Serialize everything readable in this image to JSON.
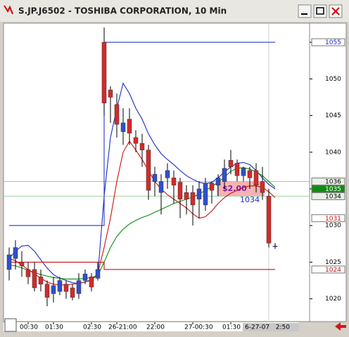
{
  "chart_data": {
    "type": "candlestick",
    "title": "S.JP.J6502 - TOSHIBA CORPORATION, 10 Min",
    "categories": [
      null,
      null,
      null,
      "00:30",
      null,
      null,
      null,
      "01:30",
      null,
      null,
      null,
      null,
      null,
      "02:30",
      null,
      null,
      null,
      "26-21:00",
      null,
      null,
      null,
      null,
      null,
      "22:00",
      null,
      null,
      null,
      null,
      null,
      "27-00:30",
      null,
      null,
      null,
      null,
      null,
      "01:30",
      null,
      null,
      null,
      null,
      null,
      null,
      null
    ],
    "open": [
      1024,
      1025.5,
      1025,
      1024,
      1024,
      1023,
      1022,
      1020.7,
      1021,
      1022,
      1021.5,
      1020.7,
      1022.5,
      1023,
      1022.8,
      1055,
      1048.5,
      1046.5,
      1042.8,
      1044.5,
      1042,
      1041.2,
      1040.3,
      1036,
      1034.5,
      1036.5,
      1036.5,
      1035.9,
      1034.5,
      1034.5,
      1033.6,
      1032.8,
      1035.8,
      1035.5,
      1036,
      1038.9,
      1038.5,
      1036.8,
      1037.5,
      1037.5,
      1036,
      1034,
      1027.2
    ],
    "high": [
      1027,
      1028,
      1026.5,
      1025,
      1025,
      1024,
      1022.5,
      1023,
      1023,
      1022.5,
      1022,
      1023.5,
      1024,
      1023.5,
      1025,
      1057,
      1049,
      1048,
      1046,
      1046,
      1043,
      1042.5,
      1041,
      1038,
      1037,
      1038.5,
      1037.5,
      1036.5,
      1035.5,
      1035.5,
      1036,
      1036.5,
      1036,
      1037,
      1039,
      1040.3,
      1039,
      1038,
      1038,
      1038.5,
      1038,
      1035,
      1027.6
    ],
    "low": [
      1022.5,
      1024,
      1023,
      1022,
      1021,
      1021,
      1019,
      1019.5,
      1020.5,
      1020,
      1019.8,
      1020,
      1022,
      1021,
      1022.5,
      1045,
      1044,
      1042,
      1041,
      1041,
      1040,
      1038,
      1033.5,
      1034,
      1031.5,
      1035,
      1033,
      1031,
      1031.5,
      1030,
      1031,
      1032,
      1033,
      1034,
      1035,
      1037,
      1036,
      1036,
      1035,
      1034.5,
      1033.5,
      1027,
      1026.8
    ],
    "close": [
      1026,
      1027,
      1024.5,
      1023,
      1021.5,
      1022,
      1020.2,
      1021.8,
      1022.5,
      1021,
      1020.2,
      1022.5,
      1023.4,
      1021.6,
      1024,
      1046.7,
      1047.5,
      1043.8,
      1044,
      1042.6,
      1041.2,
      1040.3,
      1034.8,
      1037,
      1036,
      1037.5,
      1035.5,
      1033.6,
      1033.6,
      1032.8,
      1035,
      1035.8,
      1034.8,
      1036.5,
      1037.8,
      1038,
      1036.8,
      1037.8,
      1036.5,
      1035.5,
      1034.5,
      1027.6,
      1027.2
    ],
    "up_color": "#2f4fd0",
    "down_color": "#d42a2a",
    "series": [
      {
        "color": "#1c2cc0",
        "step": false,
        "values": [
          1025.5,
          1026.5,
          1027.2,
          1027.3,
          1026.5,
          1025.3,
          1024.2,
          1023.3,
          1022.8,
          1022.5,
          1022.2,
          1022.1,
          1022.3,
          1022.6,
          1023.3,
          1034,
          1042,
          1046,
          1049.4,
          1048,
          1046,
          1044.5,
          1042.5,
          1041,
          1039.8,
          1039,
          1038.3,
          1037.5,
          1036.8,
          1036.3,
          1035.9,
          1035.7,
          1035.9,
          1036.5,
          1037.3,
          1038,
          1038.5,
          1038.6,
          1038.3,
          1037.5,
          1036.5,
          1035.6,
          1035
        ]
      },
      {
        "color": "#cc1111",
        "step": false,
        "values": [
          1025.5,
          1025.2,
          1024.6,
          1024,
          1023.4,
          1022.8,
          1022.3,
          1022,
          1021.9,
          1021.9,
          1022,
          1022.1,
          1022.3,
          1022.5,
          1023.5,
          1027,
          1031,
          1036,
          1040,
          1041.5,
          1040.3,
          1039,
          1037.5,
          1036,
          1035,
          1034.2,
          1033.6,
          1033,
          1032.4,
          1031.6,
          1031,
          1031.2,
          1032,
          1033,
          1033.8,
          1034.4,
          1034.8,
          1035.2,
          1035.4,
          1035.4,
          1035.2,
          1034.6,
          1033.8
        ]
      },
      {
        "color": "#118a11",
        "step": false,
        "values": [
          1024.6,
          1024.5,
          1024.2,
          1023.9,
          1023.6,
          1023.3,
          1023.1,
          1022.9,
          1022.8,
          1022.7,
          1022.7,
          1022.7,
          1022.8,
          1022.9,
          1023.2,
          1025,
          1027,
          1028.5,
          1029.5,
          1030.2,
          1030.7,
          1031.1,
          1031.4,
          1031.8,
          1032.2,
          1032.6,
          1033,
          1033.3,
          1033.6,
          1033.9,
          1034.3,
          1034.8,
          1035.3,
          1035.9,
          1036.6,
          1037.4,
          1037.8,
          1037.9,
          1037.7,
          1037.3,
          1036.8,
          1036,
          1035.2
        ]
      },
      {
        "color": "#2a3ad0",
        "step": true,
        "values": [
          1030,
          1030,
          1030,
          1030,
          1030,
          1030,
          1030,
          1030,
          1030,
          1030,
          1030,
          1030,
          1030,
          1030,
          1030,
          1055,
          1055,
          1055,
          1055,
          1055,
          1055,
          1055,
          1055,
          1055,
          1055,
          1055,
          1055,
          1055,
          1055,
          1055,
          1055,
          1055,
          1055,
          1055,
          1055,
          1055,
          1055,
          1055,
          1055,
          1055,
          1055,
          1055,
          1055
        ]
      },
      {
        "color": "#cc1111",
        "step": true,
        "values": [
          1025,
          1025,
          1025,
          1025,
          1025,
          1025,
          1025,
          1025,
          1025,
          1025,
          1025,
          1025,
          1025,
          1025,
          1025,
          1024,
          1024,
          1024,
          1024,
          1024,
          1024,
          1024,
          1024,
          1024,
          1024,
          1024,
          1024,
          1024,
          1024,
          1024,
          1024,
          1024,
          1024,
          1024,
          1024,
          1024,
          1024,
          1024,
          1024,
          1024,
          1024,
          1024,
          1024
        ]
      }
    ],
    "levels": [
      {
        "value": 1055,
        "color": "#1c2cc0",
        "bg": "#ffffff",
        "line": false
      },
      {
        "value": 1036,
        "color": "#000000",
        "bg": "#e8f0e8",
        "line": true
      },
      {
        "value": 1035,
        "color": "#ffffff",
        "bg": "#118a11",
        "line": false
      },
      {
        "value": 1034,
        "color": "#000000",
        "bg": "#e8f0e8",
        "line": true
      },
      {
        "value": 1031,
        "color": "#cc1111",
        "bg": "#ffffff",
        "line": false
      },
      {
        "value": 1024,
        "color": "#cc1111",
        "bg": "#ffffff",
        "line": false
      }
    ],
    "annotations": [
      "$2.00",
      "1034"
    ],
    "cursor_label": "6-27-07   2:50",
    "ylim": [
      1016.9,
      1057.6
    ],
    "yticks": [
      1020,
      1025,
      1030,
      1035,
      1040,
      1045,
      1050,
      1055
    ],
    "grid": false
  }
}
